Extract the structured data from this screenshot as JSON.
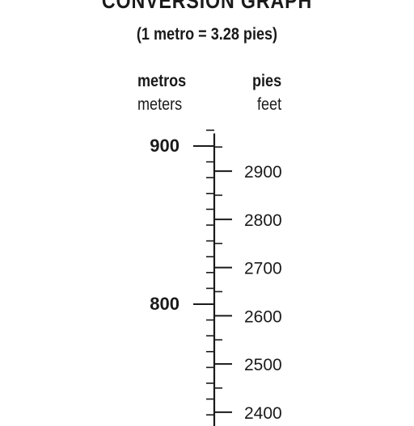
{
  "header": {
    "title": "CONVERSION GRAPH",
    "subtitle": "(1 metro = 3.28 pies)",
    "left_label_es": "metros",
    "left_label_en": "meters",
    "right_label_es": "pies",
    "right_label_en": "feet"
  },
  "chart_data": {
    "type": "conversion-scale",
    "title": "CONVERSION GRAPH",
    "subtitle": "(1 metro = 3.28 pies)",
    "conversion_factor": 3.28,
    "left_axis": {
      "label": "metros / meters",
      "unit": "m",
      "range": [
        725,
        910
      ],
      "labeled_ticks": [
        900,
        800
      ],
      "labeled_tick_text": [
        "900",
        "800"
      ],
      "minor_tick_step": 10
    },
    "right_axis": {
      "label": "pies / feet",
      "unit": "ft",
      "range": [
        2378,
        2985
      ],
      "labeled_ticks": [
        2900,
        2800,
        2700,
        2600,
        2500,
        2400
      ],
      "labeled_tick_text": [
        "2900",
        "2800",
        "2700",
        "2600",
        "2500",
        "2400"
      ]
    }
  }
}
